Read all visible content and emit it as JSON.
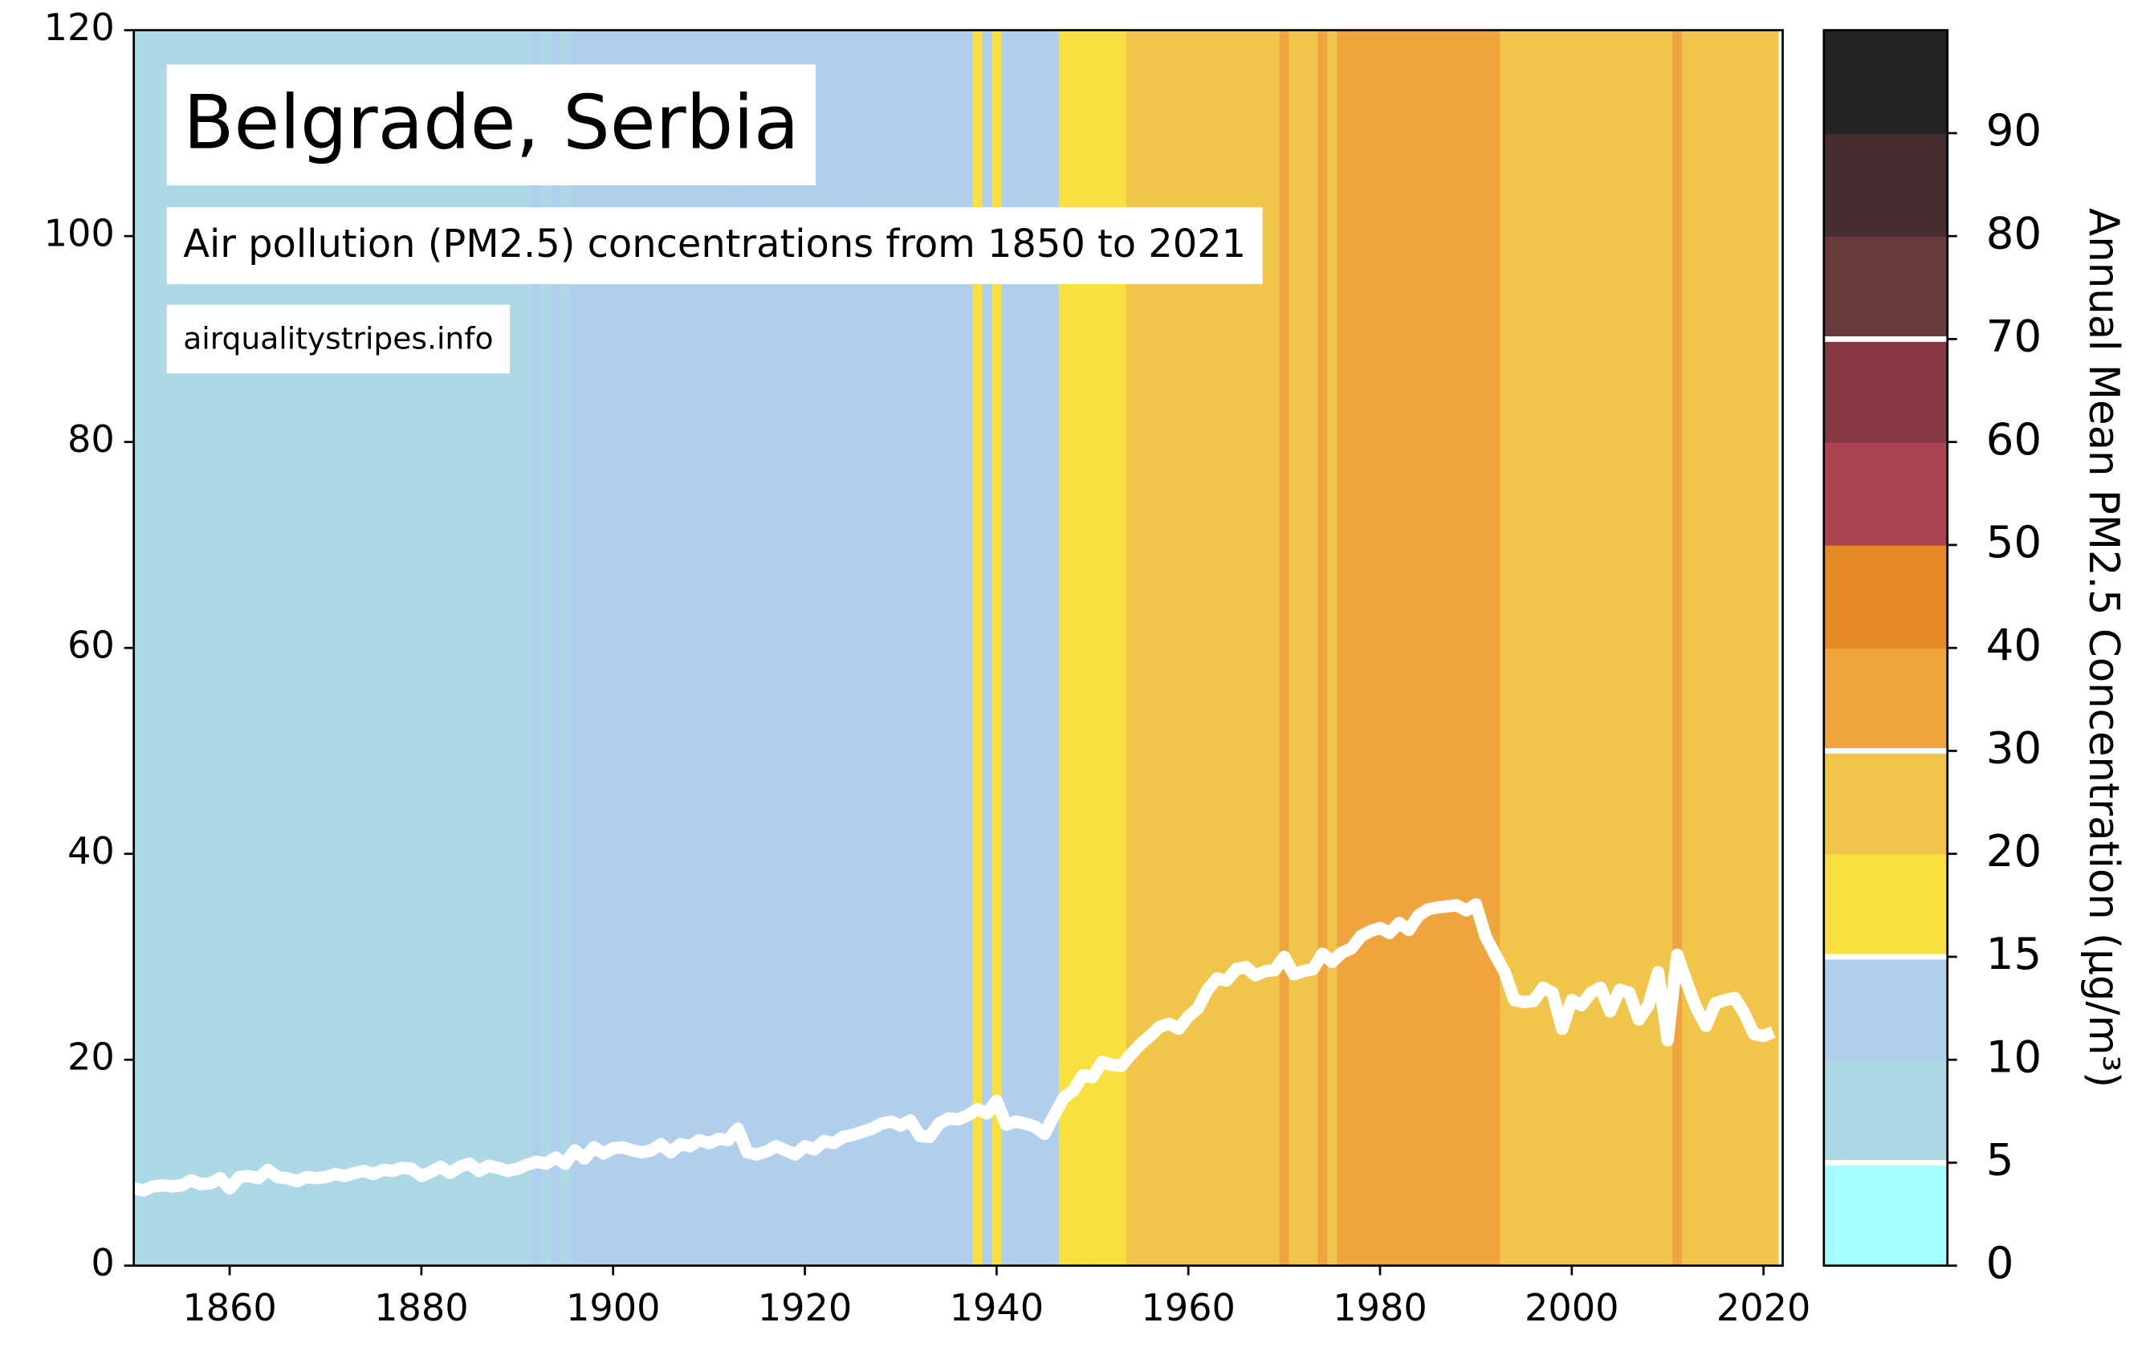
{
  "chart_data": {
    "type": "stripes-line",
    "title": "Belgrade, Serbia",
    "subtitle": "Air pollution (PM2.5) concentrations from 1850 to 2021",
    "source": "airqualitystripes.info",
    "x": [
      1850,
      1851,
      1852,
      1853,
      1854,
      1855,
      1856,
      1857,
      1858,
      1859,
      1860,
      1861,
      1862,
      1863,
      1864,
      1865,
      1866,
      1867,
      1868,
      1869,
      1870,
      1871,
      1872,
      1873,
      1874,
      1875,
      1876,
      1877,
      1878,
      1879,
      1880,
      1881,
      1882,
      1883,
      1884,
      1885,
      1886,
      1887,
      1888,
      1889,
      1890,
      1891,
      1892,
      1893,
      1894,
      1895,
      1896,
      1897,
      1898,
      1899,
      1900,
      1901,
      1902,
      1903,
      1904,
      1905,
      1906,
      1907,
      1908,
      1909,
      1910,
      1911,
      1912,
      1913,
      1914,
      1915,
      1916,
      1917,
      1918,
      1919,
      1920,
      1921,
      1922,
      1923,
      1924,
      1925,
      1926,
      1927,
      1928,
      1929,
      1930,
      1931,
      1932,
      1933,
      1934,
      1935,
      1936,
      1937,
      1938,
      1939,
      1940,
      1941,
      1942,
      1943,
      1944,
      1945,
      1946,
      1947,
      1948,
      1949,
      1950,
      1951,
      1952,
      1953,
      1954,
      1955,
      1956,
      1957,
      1958,
      1959,
      1960,
      1961,
      1962,
      1963,
      1964,
      1965,
      1966,
      1967,
      1968,
      1969,
      1970,
      1971,
      1972,
      1973,
      1974,
      1975,
      1976,
      1977,
      1978,
      1979,
      1980,
      1981,
      1982,
      1983,
      1984,
      1985,
      1986,
      1987,
      1988,
      1989,
      1990,
      1991,
      1992,
      1993,
      1994,
      1995,
      1996,
      1997,
      1998,
      1999,
      2000,
      2001,
      2002,
      2003,
      2004,
      2005,
      2006,
      2007,
      2008,
      2009,
      2010,
      2011,
      2012,
      2013,
      2014,
      2015,
      2016,
      2017,
      2018,
      2019,
      2020,
      2021
    ],
    "values": [
      7.5,
      7.3,
      7.7,
      7.8,
      7.7,
      7.8,
      8.3,
      7.9,
      8.0,
      8.5,
      7.5,
      8.6,
      8.7,
      8.5,
      9.3,
      8.6,
      8.5,
      8.2,
      8.6,
      8.5,
      8.6,
      8.9,
      8.7,
      9.0,
      9.2,
      8.9,
      9.3,
      9.2,
      9.5,
      9.4,
      8.7,
      9.1,
      9.6,
      9.0,
      9.6,
      9.9,
      9.2,
      9.7,
      9.5,
      9.2,
      9.4,
      9.8,
      10.1,
      9.9,
      10.5,
      9.9,
      11.2,
      10.4,
      11.5,
      10.9,
      11.4,
      11.5,
      11.2,
      11.0,
      11.2,
      11.8,
      11.0,
      11.8,
      11.6,
      12.2,
      11.9,
      12.3,
      12.2,
      13.3,
      11.0,
      10.8,
      11.1,
      11.6,
      11.2,
      10.8,
      11.6,
      11.3,
      12.1,
      11.9,
      12.5,
      12.7,
      13.0,
      13.3,
      13.8,
      14.0,
      13.6,
      14.1,
      12.6,
      12.5,
      13.8,
      14.3,
      14.2,
      14.6,
      15.2,
      14.8,
      16.0,
      13.7,
      14.0,
      13.8,
      13.5,
      12.8,
      14.6,
      16.3,
      17.0,
      18.5,
      18.3,
      19.8,
      19.5,
      19.4,
      20.5,
      21.5,
      22.3,
      23.2,
      23.5,
      23.0,
      24.2,
      25.0,
      26.8,
      27.9,
      27.7,
      28.8,
      29.0,
      28.2,
      28.6,
      28.7,
      30.0,
      28.3,
      28.6,
      28.8,
      30.3,
      29.5,
      30.4,
      30.8,
      32.0,
      32.5,
      32.8,
      32.3,
      33.3,
      32.6,
      34.0,
      34.6,
      34.8,
      34.9,
      35.0,
      34.5,
      35.1,
      32.0,
      30.2,
      28.5,
      25.8,
      25.6,
      25.7,
      27.0,
      26.5,
      23.0,
      25.8,
      25.3,
      26.5,
      27.0,
      24.7,
      26.8,
      26.5,
      23.9,
      25.3,
      28.5,
      21.9,
      30.2,
      27.5,
      25.0,
      23.3,
      25.5,
      25.8,
      26.0,
      24.5,
      22.5,
      22.3,
      22.7
    ],
    "line_color": "#ffffff",
    "xlim": [
      1850,
      2022
    ],
    "xticks": [
      1860,
      1880,
      1900,
      1920,
      1940,
      1960,
      1980,
      2000,
      2020
    ],
    "ylim": [
      0,
      120
    ],
    "yticks": [
      0,
      20,
      40,
      60,
      80,
      100,
      120
    ],
    "colorbar": {
      "label": "Annual Mean PM2.5 Concentration (µg/m³)",
      "bounds": [
        0,
        5,
        10,
        15,
        20,
        30,
        40,
        50,
        60,
        70,
        80,
        90,
        100
      ],
      "colors": [
        "#a6ffff",
        "#add8e6",
        "#b0cfed",
        "#f7e03f",
        "#f1c54a",
        "#f0a43e",
        "#e68a26",
        "#ac4451",
        "#863844",
        "#693a3c",
        "#472f30",
        "#242424"
      ],
      "ticks": [
        0,
        5,
        10,
        15,
        20,
        30,
        40,
        50,
        60,
        70,
        80,
        90
      ],
      "lines": [
        5,
        15,
        30,
        70
      ]
    }
  }
}
